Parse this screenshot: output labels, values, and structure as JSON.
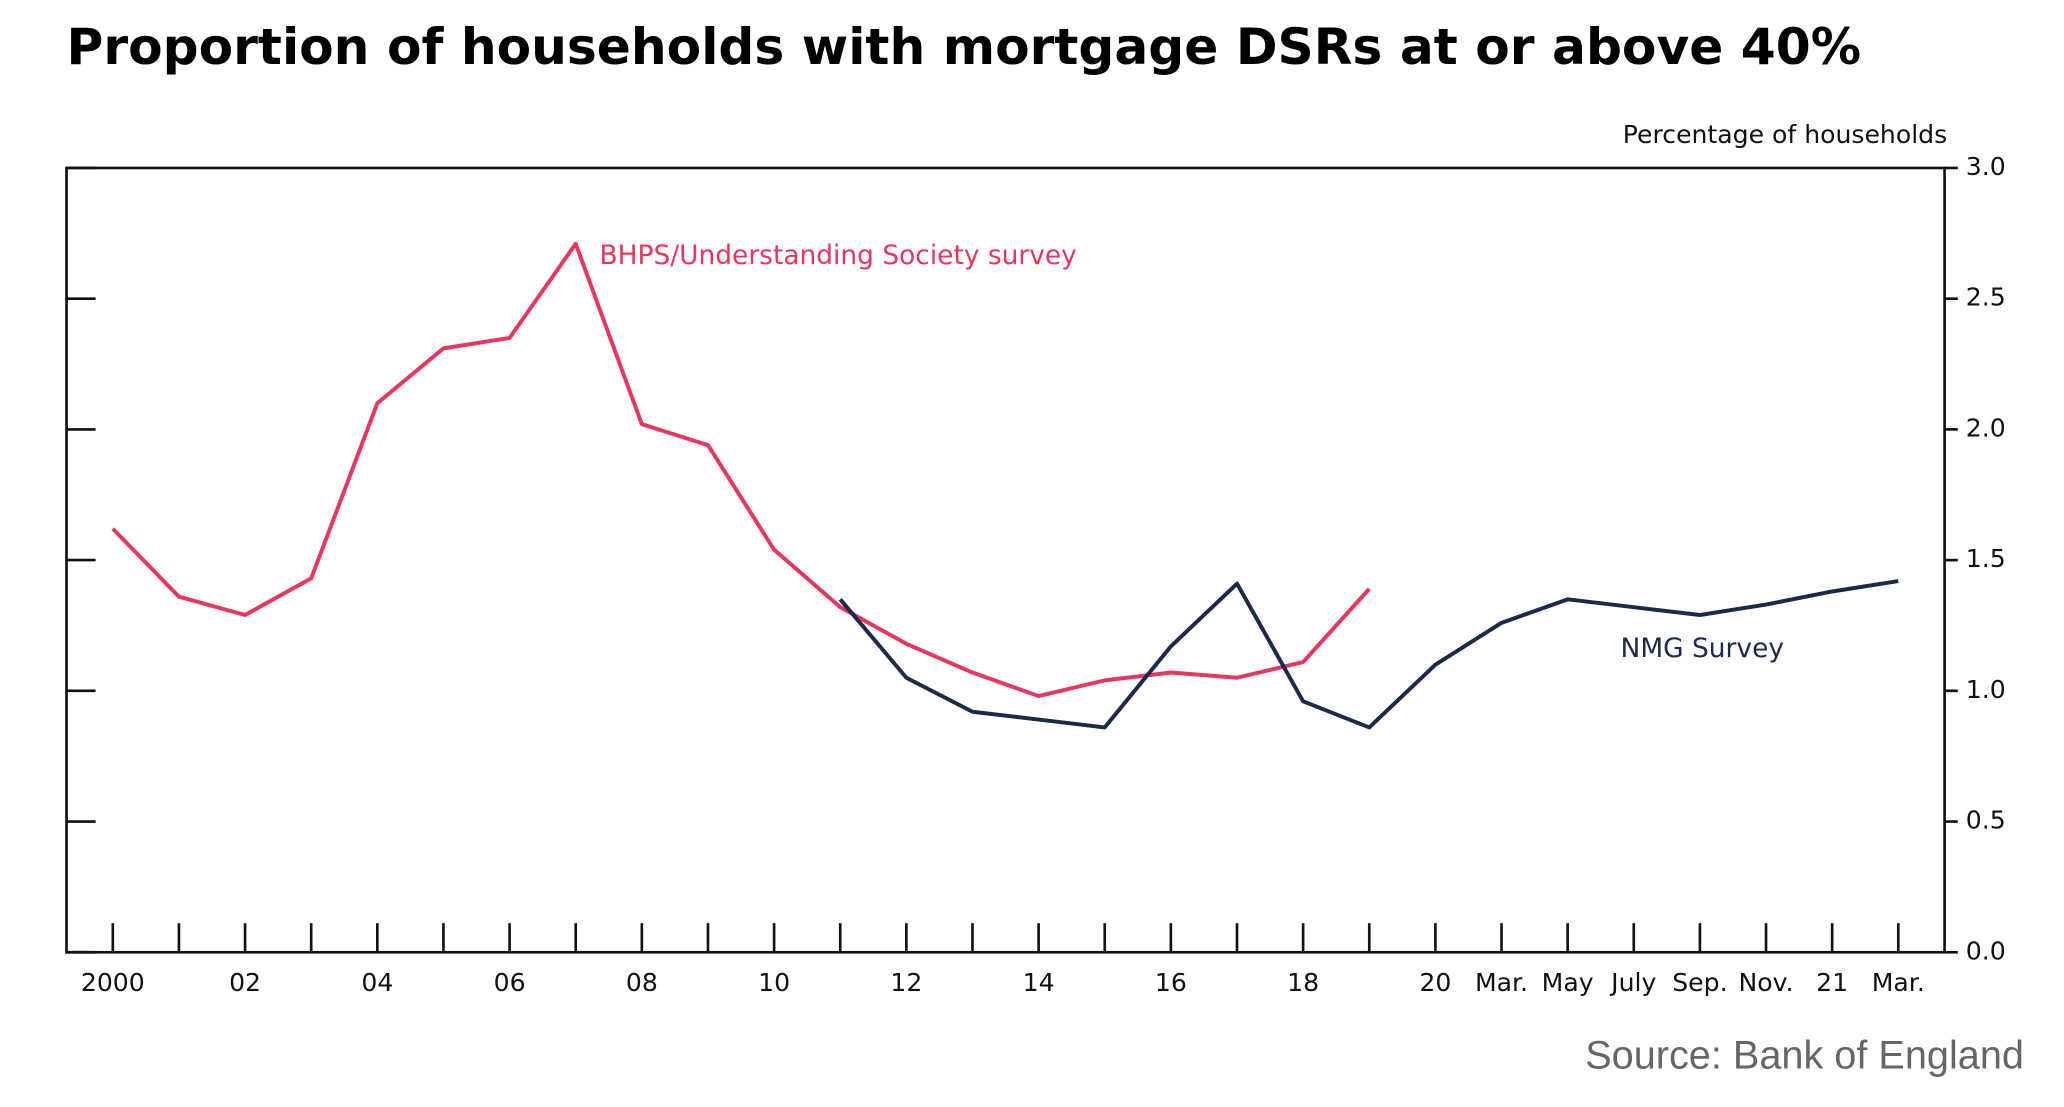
{
  "chart_data": {
    "type": "line",
    "title": "Proportion of households with mortgage DSRs at or above 40%",
    "y_axis_label": "Percentage of households",
    "source": "Source: Bank of England",
    "categories": [
      "2000",
      null,
      "02",
      null,
      "04",
      null,
      "06",
      null,
      "08",
      null,
      "10",
      null,
      "12",
      null,
      "14",
      null,
      "16",
      null,
      "18",
      null,
      "20",
      "Mar.",
      "May",
      "July",
      "Sep.",
      "Nov.",
      "21",
      "Mar."
    ],
    "series": [
      {
        "name": "BHPS/Understanding Society survey",
        "color": "#e8375f",
        "values": [
          1.62,
          1.36,
          1.29,
          1.43,
          2.1,
          2.31,
          2.35,
          2.71,
          2.02,
          1.94,
          1.54,
          1.32,
          1.18,
          1.07,
          0.98,
          1.04,
          1.07,
          1.05,
          1.11,
          1.39,
          null,
          null,
          null,
          null,
          null,
          null,
          null,
          null
        ]
      },
      {
        "name": "NMG Survey",
        "color": "#1c2a4a",
        "values": [
          null,
          null,
          null,
          null,
          null,
          null,
          null,
          null,
          null,
          null,
          null,
          1.35,
          1.05,
          0.92,
          0.89,
          0.86,
          1.17,
          1.41,
          0.96,
          0.86,
          1.1,
          1.26,
          1.35,
          1.32,
          1.29,
          1.33,
          1.38,
          1.42
        ]
      }
    ],
    "ylim": [
      0,
      3
    ],
    "yticks": [
      {
        "value": 0,
        "label": "0.0"
      },
      {
        "value": 0.5,
        "label": "0.5"
      },
      {
        "value": 1,
        "label": "1.0"
      },
      {
        "value": 1.5,
        "label": "1.5"
      },
      {
        "value": 2,
        "label": "2.0"
      },
      {
        "value": 2.5,
        "label": "2.5"
      },
      {
        "value": 3,
        "label": "3.0"
      }
    ],
    "y_axis_side": "right",
    "grid": false
  }
}
